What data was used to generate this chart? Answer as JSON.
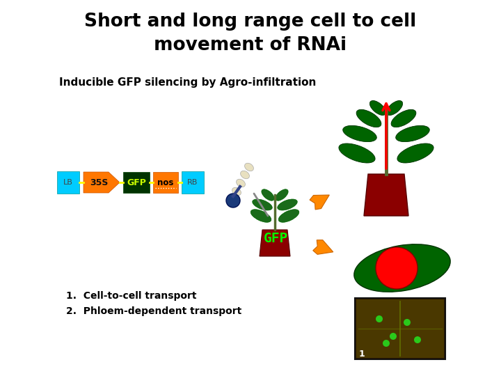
{
  "title": "Short and long range cell to cell\nmovement of RNAi",
  "subtitle": "Inducible GFP silencing by Agro-infiltration",
  "list_items": [
    "Cell-to-cell transport",
    "Phloem-dependent transport"
  ],
  "title_fontsize": 19,
  "subtitle_fontsize": 11,
  "list_fontsize": 10,
  "bg_color": "#ffffff",
  "title_color": "#000000",
  "subtitle_color": "#000000",
  "lb_color": "#00ccff",
  "s35_color": "#ff7700",
  "gfp_box_color": "#003300",
  "nos_color": "#ff7700",
  "rb_color": "#00ccff",
  "arrow_orange": "#ff8800",
  "gfp_label_color": "#00ff00",
  "gfp_text_color": "#ccff00",
  "pot_dark_red": "#8b0000",
  "leaf_green": "#1a6b1a",
  "leaf_dark": "#006400",
  "stem_color": "#556b2f",
  "photo_bg": "#2a1800",
  "photo_leaf_vein": "#556b00"
}
